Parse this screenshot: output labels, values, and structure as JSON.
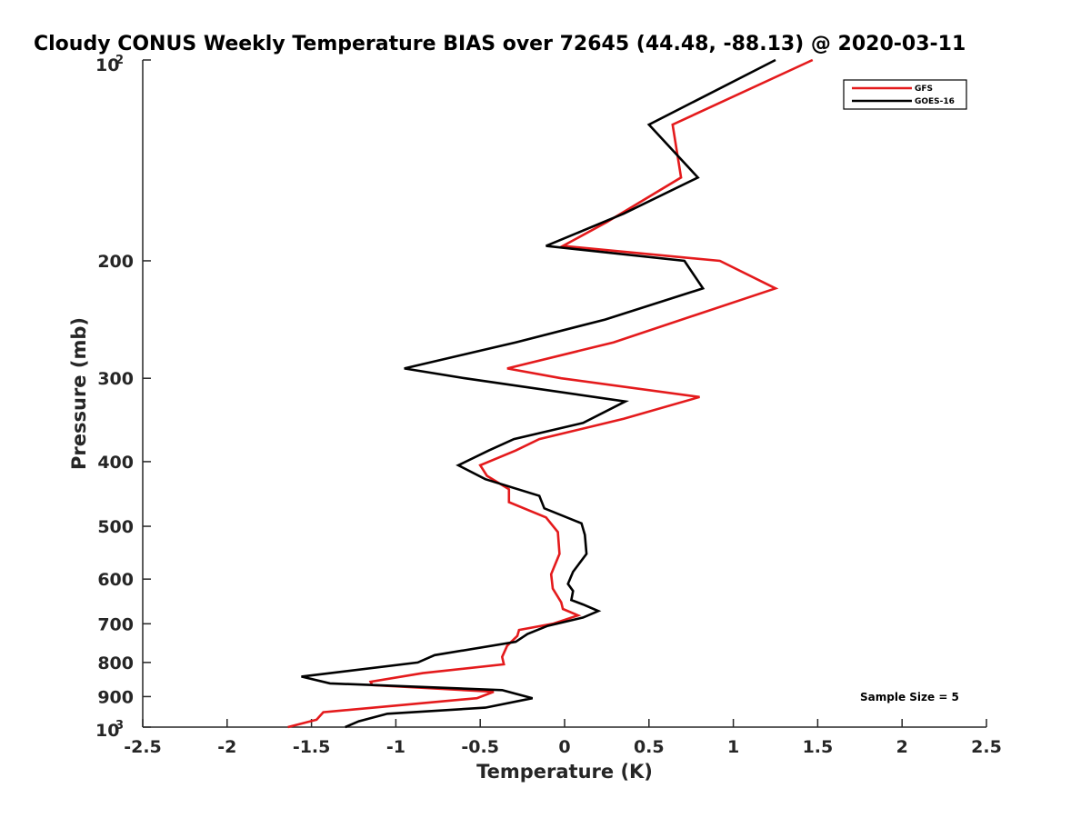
{
  "chart_data": {
    "type": "line",
    "title": "Cloudy CONUS Weekly Temperature BIAS over 72645 (44.48, -88.13) @ 2020-03-11",
    "xlabel": "Temperature (K)",
    "ylabel": "Pressure (mb)",
    "xlim": [
      -2.5,
      2.5
    ],
    "ylim": [
      1000,
      100
    ],
    "yscale": "log",
    "y_reversed": true,
    "grid": false,
    "legend_position": "top-right",
    "x_ticks": [
      -2.5,
      -2,
      -1.5,
      -1,
      -0.5,
      0,
      0.5,
      1,
      1.5,
      2,
      2.5
    ],
    "x_tick_labels": [
      "-2.5",
      "-2",
      "-1.5",
      "-1",
      "-0.5",
      "0",
      "0.5",
      "1",
      "1.5",
      "2",
      "2.5"
    ],
    "y_ticks": [
      100,
      200,
      300,
      400,
      500,
      600,
      700,
      800,
      900,
      1000
    ],
    "y_tick_labels": [
      "",
      "200",
      "300",
      "400",
      "500",
      "600",
      "700",
      "800",
      "900",
      ""
    ],
    "y_tick_base": "10",
    "y_tick_exp_top": "2",
    "y_tick_exp_bottom": "3",
    "annotation": "Sample Size = 5",
    "series": [
      {
        "name": "GFS",
        "color": "#e41a1c",
        "points": [
          [
            1.47,
            100
          ],
          [
            0.64,
            125
          ],
          [
            0.69,
            150
          ],
          [
            0.25,
            175
          ],
          [
            -0.01,
            190
          ],
          [
            0.92,
            200
          ],
          [
            1.25,
            220
          ],
          [
            0.8,
            240
          ],
          [
            0.29,
            265
          ],
          [
            -0.34,
            290
          ],
          [
            -0.02,
            300
          ],
          [
            0.8,
            320
          ],
          [
            0.35,
            345
          ],
          [
            -0.15,
            370
          ],
          [
            -0.29,
            385
          ],
          [
            -0.5,
            405
          ],
          [
            -0.46,
            420
          ],
          [
            -0.33,
            440
          ],
          [
            -0.33,
            460
          ],
          [
            -0.11,
            485
          ],
          [
            -0.04,
            510
          ],
          [
            -0.03,
            550
          ],
          [
            -0.08,
            590
          ],
          [
            -0.07,
            620
          ],
          [
            -0.02,
            650
          ],
          [
            -0.01,
            665
          ],
          [
            0.08,
            680
          ],
          [
            -0.07,
            700
          ],
          [
            -0.27,
            715
          ],
          [
            -0.28,
            730
          ],
          [
            -0.34,
            755
          ],
          [
            -0.37,
            785
          ],
          [
            -0.36,
            805
          ],
          [
            -0.84,
            830
          ],
          [
            -1.15,
            855
          ],
          [
            -1.14,
            865
          ],
          [
            -0.42,
            885
          ],
          [
            -0.52,
            905
          ],
          [
            -1.43,
            950
          ],
          [
            -1.47,
            975
          ],
          [
            -1.64,
            1000
          ]
        ]
      },
      {
        "name": "GOES-16",
        "color": "#000000",
        "points": [
          [
            1.25,
            100
          ],
          [
            0.5,
            125
          ],
          [
            0.79,
            150
          ],
          [
            0.35,
            170
          ],
          [
            -0.11,
            190
          ],
          [
            0.71,
            200
          ],
          [
            0.82,
            220
          ],
          [
            0.24,
            245
          ],
          [
            -0.29,
            265
          ],
          [
            -0.95,
            290
          ],
          [
            -0.59,
            300
          ],
          [
            0.36,
            325
          ],
          [
            0.11,
            350
          ],
          [
            -0.3,
            370
          ],
          [
            -0.45,
            385
          ],
          [
            -0.63,
            405
          ],
          [
            -0.47,
            425
          ],
          [
            -0.15,
            450
          ],
          [
            -0.12,
            470
          ],
          [
            0.1,
            495
          ],
          [
            0.12,
            515
          ],
          [
            0.13,
            550
          ],
          [
            0.05,
            585
          ],
          [
            0.02,
            610
          ],
          [
            0.05,
            625
          ],
          [
            0.04,
            645
          ],
          [
            0.11,
            655
          ],
          [
            0.2,
            670
          ],
          [
            0.11,
            685
          ],
          [
            -0.1,
            705
          ],
          [
            -0.22,
            725
          ],
          [
            -0.29,
            745
          ],
          [
            -0.77,
            780
          ],
          [
            -0.87,
            800
          ],
          [
            -1.56,
            840
          ],
          [
            -1.39,
            860
          ],
          [
            -0.37,
            880
          ],
          [
            -0.19,
            905
          ],
          [
            -0.47,
            935
          ],
          [
            -1.05,
            955
          ],
          [
            -1.22,
            980
          ],
          [
            -1.3,
            1000
          ]
        ]
      }
    ]
  }
}
